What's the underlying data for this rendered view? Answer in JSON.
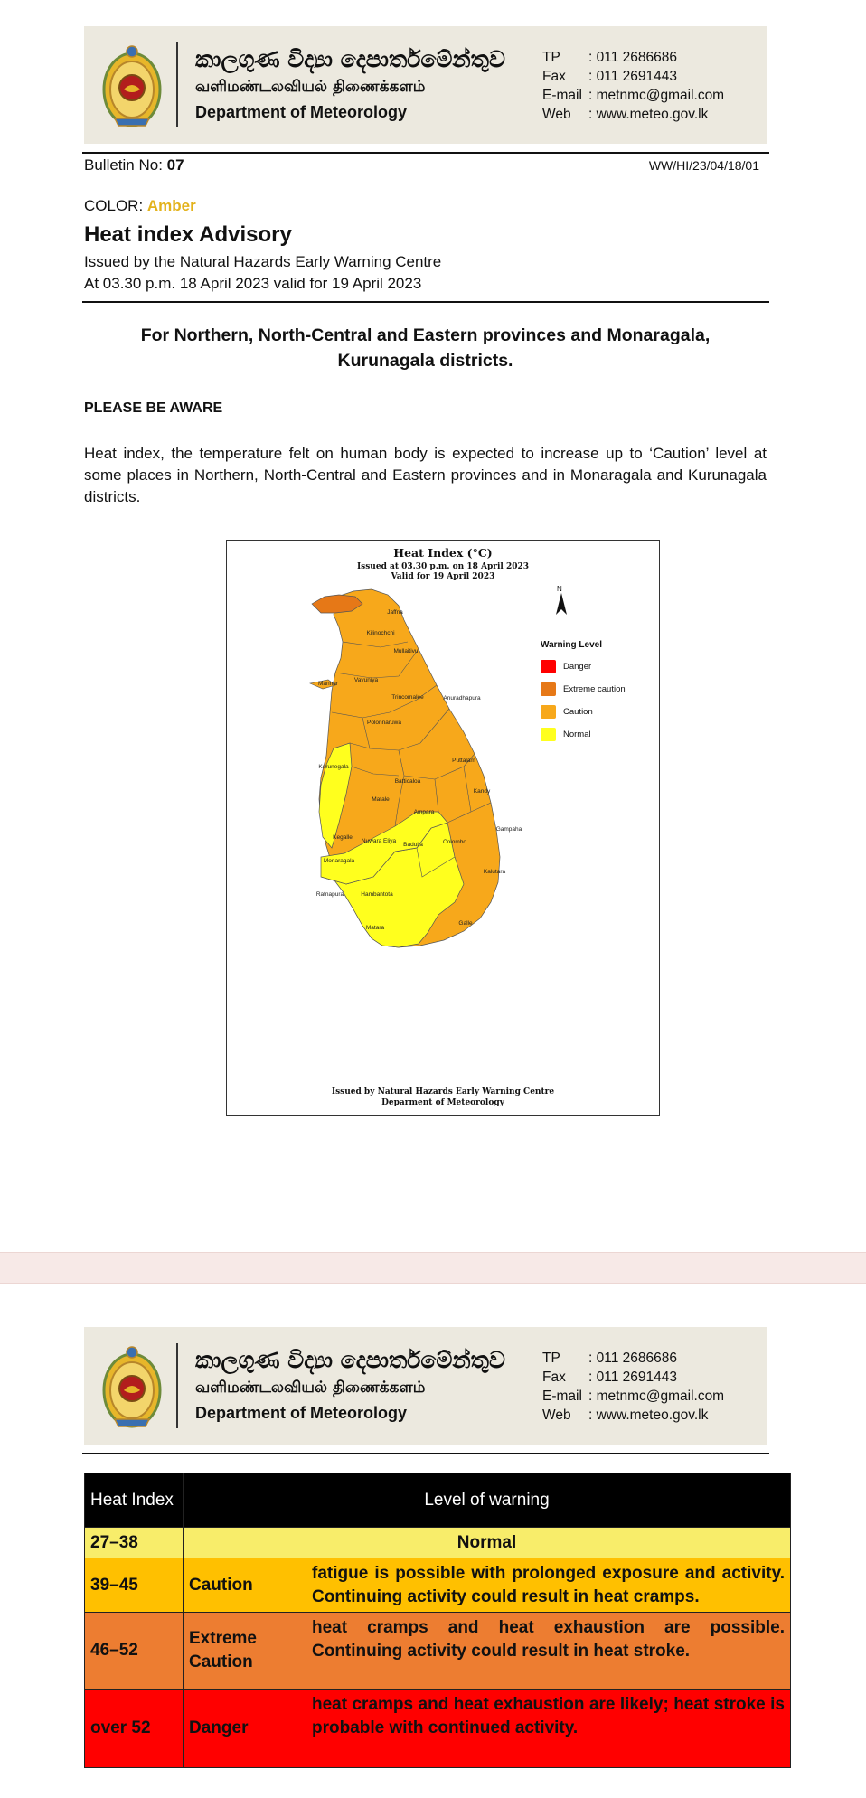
{
  "header": {
    "name_sinhala": "කාලගුණ විද්‍යා දෙපාර්තමේන්තුව",
    "name_tamil": "வளிமண்டலவியல் திணைக்களம்",
    "name_english": "Department of Meteorology",
    "contacts": [
      {
        "key": "TP",
        "value": ": 011 2686686"
      },
      {
        "key": "Fax",
        "value": ": 011 2691443"
      },
      {
        "key": "E-mail",
        "value": ": metnmc@gmail.com"
      },
      {
        "key": "Web",
        "value": ": www.meteo.gov.lk"
      }
    ]
  },
  "bulletin": {
    "label": "Bulletin No: ",
    "number": "07",
    "reference": "WW/HI/23/04/18/01",
    "color_label": "COLOR: ",
    "color_value": "Amber",
    "title": "Heat index Advisory",
    "issued_by": "Issued by the Natural Hazards Early Warning Centre",
    "issued_at": "At 03.30 p.m. 18 April 2023 valid for 19 April 2023",
    "areas_line1": "For Northern, North-Central and Eastern provinces and Monaragala,",
    "areas_line2": "Kurunagala districts.",
    "aware": "PLEASE BE AWARE",
    "paragraph": "Heat index, the temperature felt on human body is expected to increase up to ‘Caution’ level at some places in Northern, North-Central and Eastern provinces and in Monaragala and Kurunagala districts."
  },
  "map": {
    "title": "Heat Index (°C)",
    "subtitle1": "Issued at 03.30 p.m. on 18 April 2023",
    "subtitle2": "Valid for  19 April 2023",
    "north": "N",
    "legend_title": "Warning Level",
    "legend": [
      {
        "label": "Danger",
        "color": "#ff0000"
      },
      {
        "label": "Extreme caution",
        "color": "#e67817"
      },
      {
        "label": "Caution",
        "color": "#f7a81b"
      },
      {
        "label": "Normal",
        "color": "#ffff1e"
      }
    ],
    "footer1": "Issued by Natural Hazards Early Warning Centre",
    "footer2": "Deparment of Meteorology",
    "districts": [
      "Jaffna",
      "Kilinochchi",
      "Mullaitivu",
      "Mannar",
      "Vavuniya",
      "Trincomalee",
      "Anuradhapura",
      "Polonnaruwa",
      "Puttalam",
      "Kurunegala",
      "Matale",
      "Batticaloa",
      "Kandy",
      "Ampara",
      "Gampaha",
      "Kegalle",
      "Nuwara Eliya",
      "Badulla",
      "Colombo",
      "Monaragala",
      "Kalutara",
      "Ratnapura",
      "Hambantota",
      "Galle",
      "Matara"
    ]
  },
  "warning_table": {
    "header_col1": "Heat Index",
    "header_col2": "Level of warning",
    "rows": [
      {
        "range": "27–38",
        "level": "Normal",
        "description": ""
      },
      {
        "range": "39–45",
        "level": "Caution",
        "description": "fatigue is possible with prolonged exposure and activity. Continuing activity could result in heat cramps."
      },
      {
        "range": "46–52",
        "level": "Extreme Caution",
        "description": "heat cramps and heat exhaustion are possible. Continuing activity could result in heat stroke."
      },
      {
        "range": "over 52",
        "level": "Danger",
        "description": "heat cramps and heat exhaustion are likely; heat stroke is probable with continued activity."
      }
    ]
  }
}
